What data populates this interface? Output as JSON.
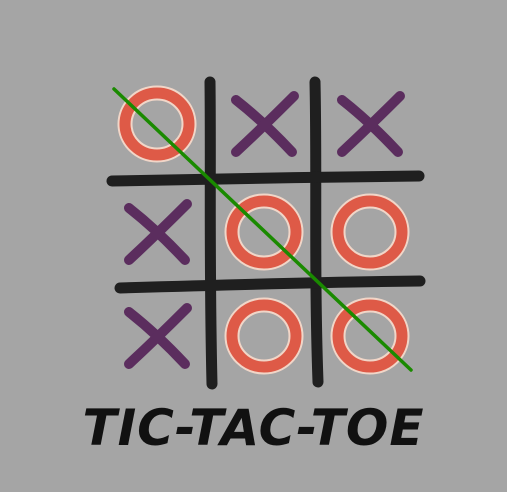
{
  "game": {
    "title": "TIC-TAC-TOE",
    "board": [
      [
        "O",
        "X",
        "X"
      ],
      [
        "X",
        "O",
        "O"
      ],
      [
        "X",
        "O",
        "O"
      ]
    ],
    "winning_line": "diagonal-top-left-to-bottom-right"
  },
  "colors": {
    "background": "#a5a5a5",
    "grid": "#1f1f1f",
    "x_mark": "#5b2d5e",
    "o_mark": "#de5a47",
    "o_outline": "#f1d6c8",
    "strike": "#1a8a00"
  }
}
